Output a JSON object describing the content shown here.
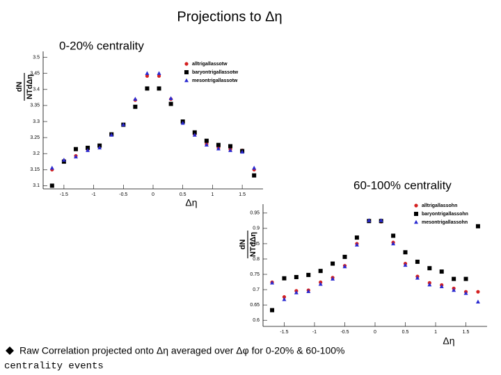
{
  "title": "Projections to Δη",
  "caption_line1": "Raw Correlation projected onto Δη averaged over Δφ for 0-20% & 60-100%",
  "caption_line2": "centrality events",
  "chart_data": [
    {
      "type": "scatter",
      "title": "0-20% centrality",
      "xlabel": "Δη",
      "ylabel": {
        "numerator": "dN",
        "denominator": "NTdΔη"
      },
      "x": [
        -1.7,
        -1.5,
        -1.3,
        -1.1,
        -0.9,
        -0.7,
        -0.5,
        -0.3,
        -0.1,
        0.1,
        0.3,
        0.5,
        0.7,
        0.9,
        1.1,
        1.3,
        1.5,
        1.7
      ],
      "xlim": [
        -1.85,
        1.85
      ],
      "xticks": [
        -1.5,
        -1,
        -0.5,
        0,
        0.5,
        1,
        1.5
      ],
      "ylim": [
        3.09,
        3.51
      ],
      "yticks": [
        3.1,
        3.15,
        3.2,
        3.25,
        3.3,
        3.35,
        3.4,
        3.45,
        3.5
      ],
      "series": [
        {
          "name": "alltrigallassotw",
          "color": "#d42020",
          "marker": "circle",
          "values": [
            3.15,
            3.178,
            3.193,
            3.213,
            3.222,
            3.26,
            3.29,
            3.367,
            3.442,
            3.442,
            3.37,
            3.297,
            3.26,
            3.23,
            3.218,
            3.213,
            3.21,
            3.15
          ]
        },
        {
          "name": "baryontrigallassotw",
          "color": "#000000",
          "marker": "square",
          "values": [
            3.1,
            3.175,
            3.214,
            3.218,
            3.225,
            3.26,
            3.29,
            3.346,
            3.403,
            3.403,
            3.355,
            3.3,
            3.266,
            3.24,
            3.227,
            3.223,
            3.208,
            3.132
          ]
        },
        {
          "name": "mesontrigallassotw",
          "color": "#2a2ad0",
          "marker": "triangle",
          "values": [
            3.155,
            3.18,
            3.19,
            3.21,
            3.218,
            3.258,
            3.29,
            3.37,
            3.45,
            3.45,
            3.372,
            3.295,
            3.258,
            3.227,
            3.215,
            3.21,
            3.205,
            3.155
          ]
        }
      ]
    },
    {
      "type": "scatter",
      "title": "60-100% centrality",
      "xlabel": "Δη",
      "ylabel": {
        "numerator": "dN",
        "denominator": "NTdΔη"
      },
      "x": [
        -1.7,
        -1.5,
        -1.3,
        -1.1,
        -0.9,
        -0.7,
        -0.5,
        -0.3,
        -0.1,
        0.1,
        0.3,
        0.5,
        0.7,
        0.9,
        1.1,
        1.3,
        1.5,
        1.7
      ],
      "xlim": [
        -1.85,
        1.85
      ],
      "xticks": [
        -1.5,
        -1,
        -0.5,
        0,
        0.5,
        1,
        1.5
      ],
      "ylim": [
        0.58,
        0.97
      ],
      "yticks": [
        0.6,
        0.65,
        0.7,
        0.75,
        0.8,
        0.85,
        0.9,
        0.95
      ],
      "series": [
        {
          "name": "alltrigallassohn",
          "color": "#d42020",
          "marker": "circle",
          "values": [
            0.724,
            0.676,
            0.696,
            0.698,
            0.724,
            0.739,
            0.778,
            0.85,
            0.924,
            0.922,
            0.854,
            0.785,
            0.743,
            0.722,
            0.715,
            0.704,
            0.693,
            0.693
          ]
        },
        {
          "name": "baryontrigallassohn",
          "color": "#000000",
          "marker": "square",
          "values": [
            0.633,
            0.737,
            0.741,
            0.748,
            0.761,
            0.785,
            0.807,
            0.87,
            0.924,
            0.924,
            0.876,
            0.822,
            0.791,
            0.77,
            0.759,
            0.735,
            0.735,
            0.907
          ]
        },
        {
          "name": "mesontrigallassohn",
          "color": "#2a2ad0",
          "marker": "triangle",
          "values": [
            0.722,
            0.668,
            0.69,
            0.694,
            0.718,
            0.735,
            0.775,
            0.846,
            0.926,
            0.926,
            0.85,
            0.78,
            0.738,
            0.716,
            0.71,
            0.698,
            0.688,
            0.66
          ]
        }
      ]
    }
  ]
}
